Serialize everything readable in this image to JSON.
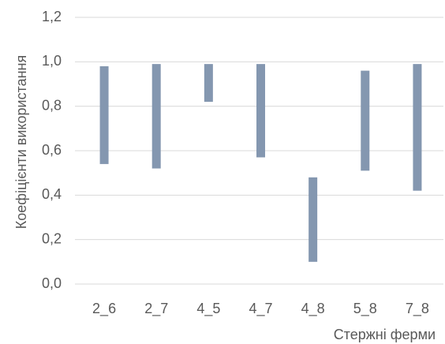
{
  "chart_data": {
    "type": "floating-bar",
    "y_label": "Коефіцієнти використання",
    "x_label": "Стержні ферми",
    "categories": [
      "2_6",
      "2_7",
      "4_5",
      "4_7",
      "4_8",
      "5_8",
      "7_8"
    ],
    "low": [
      0.54,
      0.52,
      0.82,
      0.57,
      0.1,
      0.51,
      0.42
    ],
    "high": [
      0.98,
      0.99,
      0.99,
      0.99,
      0.48,
      0.96,
      0.99
    ],
    "color": "#8497b0",
    "ylim": [
      0,
      1.2
    ],
    "yticks": [
      {
        "value": 0,
        "label": "0,0"
      },
      {
        "value": 0.2,
        "label": "0,2"
      },
      {
        "value": 0.4,
        "label": "0,4"
      },
      {
        "value": 0.6,
        "label": "0,6"
      },
      {
        "value": 0.8,
        "label": "0,8"
      },
      {
        "value": 1.0,
        "label": "1,0"
      },
      {
        "value": 1.2,
        "label": "1,2"
      }
    ],
    "grid": true
  }
}
